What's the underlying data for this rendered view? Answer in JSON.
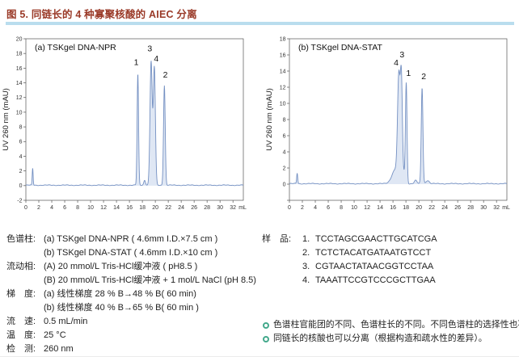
{
  "title": "图 5. 同链长的 4 种寡聚核酸的 AIEC 分离",
  "colors": {
    "title_text": "#9a3a28",
    "divider": "#b9ddee",
    "trace": "#7490c2",
    "trace_fill": "rgba(150,175,220,0.30)",
    "axis": "#555555",
    "tick_text": "#333333",
    "annotation_text": "#111111",
    "note_bullet": "#44a98c"
  },
  "chart_data": [
    {
      "type": "line",
      "title": "(a) TSKgel DNA-NPR",
      "ylabel": "UV 260 nm (mAU)",
      "xlabel": "mL",
      "xlim": [
        0,
        33.6
      ],
      "ylim": [
        -2,
        20
      ],
      "xtick_step": 2,
      "xtick_max": 32,
      "ytick_step": 2,
      "ytick_label_min": -2,
      "grid": false,
      "peaks": [
        {
          "label": "injection",
          "center": 1.05,
          "height": 2.3,
          "sigma": 0.07
        },
        {
          "label": "1",
          "center": 17.3,
          "height": 15.2,
          "sigma": 0.11
        },
        {
          "label": "minor",
          "center": 18.35,
          "height": 0.7,
          "sigma": 0.13
        },
        {
          "label": "3",
          "center": 19.35,
          "height": 16.8,
          "sigma": 0.17
        },
        {
          "label": "4",
          "center": 19.85,
          "height": 16.0,
          "sigma": 0.16
        },
        {
          "label": "2",
          "center": 21.4,
          "height": 13.6,
          "sigma": 0.13
        }
      ],
      "annotations": [
        {
          "text": "1",
          "x": 17.05,
          "y": 16.4
        },
        {
          "text": "3",
          "x": 19.15,
          "y": 18.3
        },
        {
          "text": "4",
          "x": 20.15,
          "y": 16.9
        },
        {
          "text": "2",
          "x": 21.55,
          "y": 14.7
        }
      ]
    },
    {
      "type": "line",
      "title": "(b) TSKgel DNA-STAT",
      "ylabel": "UV 260 nm (mAU)",
      "xlabel": "mL",
      "xlim": [
        0,
        33.6
      ],
      "ylim": [
        -2,
        18
      ],
      "xtick_step": 2,
      "xtick_max": 32,
      "ytick_step": 2,
      "ytick_label_min": 0,
      "grid": false,
      "peaks": [
        {
          "label": "injection",
          "center": 1.2,
          "height": 1.3,
          "sigma": 0.08
        },
        {
          "label": "shoulder",
          "center": 16.4,
          "height": 1.8,
          "sigma": 0.55
        },
        {
          "label": "4",
          "center": 16.9,
          "height": 12.2,
          "sigma": 0.19
        },
        {
          "label": "3",
          "center": 17.3,
          "height": 12.5,
          "sigma": 0.16
        },
        {
          "label": "minor",
          "center": 17.75,
          "height": 1.0,
          "sigma": 0.15
        },
        {
          "label": "1",
          "center": 18.05,
          "height": 12.4,
          "sigma": 0.12
        },
        {
          "label": "minor",
          "center": 19.5,
          "height": 0.4,
          "sigma": 0.2
        },
        {
          "label": "2",
          "center": 20.5,
          "height": 11.9,
          "sigma": 0.13
        },
        {
          "label": "minor",
          "center": 21.35,
          "height": 0.4,
          "sigma": 0.25
        }
      ],
      "annotations": [
        {
          "text": "4",
          "x": 16.5,
          "y": 14.7
        },
        {
          "text": "3",
          "x": 17.4,
          "y": 15.7
        },
        {
          "text": "1",
          "x": 18.4,
          "y": 13.4
        },
        {
          "text": "2",
          "x": 20.75,
          "y": 13.0
        }
      ]
    }
  ],
  "conditions": [
    {
      "label": "色谱柱:",
      "lines": [
        "(a) TSKgel DNA-NPR ( 4.6mm I.D.×7.5 cm )",
        "(b) TSKgel DNA-STAT ( 4.6mm I.D.×10 cm )"
      ]
    },
    {
      "label": "流动相:",
      "lines": [
        "(A) 20 mmol/L Tris-HCl缓冲液 ( pH8.5 )",
        "(B) 20 mmol/L Tris-HCl缓冲液 + 1 mol/L NaCl (pH 8.5)"
      ]
    },
    {
      "label": "梯　度:",
      "lines": [
        "(a) 线性梯度 28 % B→48 % B( 60 min)",
        "(b) 线性梯度 40 % B→65 % B( 60 min )"
      ]
    },
    {
      "label": "流　速:",
      "lines": [
        "0.5 mL/min"
      ]
    },
    {
      "label": "温　度:",
      "lines": [
        "25 °C"
      ]
    },
    {
      "label": "检　测:",
      "lines": [
        "260 nm"
      ]
    }
  ],
  "samples": {
    "label": "样　品:",
    "items": [
      {
        "num": "1.",
        "seq": "TCCTAGCGAACTTGCATCGA"
      },
      {
        "num": "2.",
        "seq": "TCTCTACATGATAATGTCCT"
      },
      {
        "num": "3.",
        "seq": "CGTAACTATAACGGTCCTAA"
      },
      {
        "num": "4.",
        "seq": "TAAATTCCGTCCCGCTTGAA"
      }
    ]
  },
  "notes": [
    "色谱柱官能团的不同、色谱柱长的不同。不同色谱柱的选择性也不同。",
    "同链长的核酸也可以分离（根据构造和疏水性的差异）。"
  ]
}
